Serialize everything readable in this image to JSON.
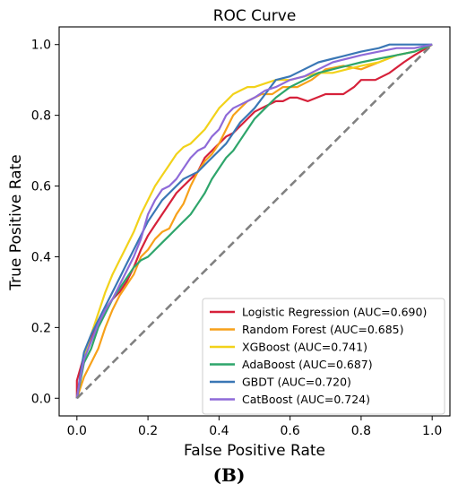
{
  "panel_label": "(B)",
  "chart_data": {
    "type": "line",
    "title": "ROC Curve",
    "xlabel": "False Positive Rate",
    "ylabel": "True Positive Rate",
    "xlim": [
      -0.05,
      1.05
    ],
    "ylim": [
      -0.05,
      1.05
    ],
    "xticks": [
      0.0,
      0.2,
      0.4,
      0.6,
      0.8,
      1.0
    ],
    "yticks": [
      0.0,
      0.2,
      0.4,
      0.6,
      0.8,
      1.0
    ],
    "xtick_labels": [
      "0.0",
      "0.2",
      "0.4",
      "0.6",
      "0.8",
      "1.0"
    ],
    "ytick_labels": [
      "0.0",
      "0.2",
      "0.4",
      "0.6",
      "0.8",
      "1.0"
    ],
    "grid": false,
    "legend_position": "lower-right",
    "diagonal": {
      "x": [
        0,
        1
      ],
      "y": [
        0,
        1
      ],
      "color": "#808080",
      "style": "dashed"
    },
    "series": [
      {
        "name": "Logistic Regression (AUC=0.690)",
        "color": "#d6213a",
        "x": [
          0,
          0,
          0.02,
          0.04,
          0.06,
          0.08,
          0.1,
          0.12,
          0.14,
          0.16,
          0.18,
          0.2,
          0.22,
          0.24,
          0.26,
          0.28,
          0.3,
          0.32,
          0.34,
          0.36,
          0.38,
          0.4,
          0.42,
          0.44,
          0.46,
          0.48,
          0.5,
          0.52,
          0.54,
          0.56,
          0.58,
          0.6,
          0.62,
          0.65,
          0.7,
          0.75,
          0.78,
          0.8,
          0.84,
          0.88,
          0.92,
          0.95,
          1.0
        ],
        "y": [
          0,
          0.05,
          0.12,
          0.17,
          0.22,
          0.25,
          0.28,
          0.3,
          0.33,
          0.37,
          0.42,
          0.46,
          0.49,
          0.52,
          0.55,
          0.58,
          0.6,
          0.62,
          0.64,
          0.68,
          0.7,
          0.72,
          0.74,
          0.75,
          0.77,
          0.79,
          0.81,
          0.82,
          0.83,
          0.84,
          0.84,
          0.85,
          0.85,
          0.84,
          0.86,
          0.86,
          0.88,
          0.9,
          0.9,
          0.92,
          0.95,
          0.97,
          1.0
        ]
      },
      {
        "name": "Random Forest (AUC=0.685)",
        "color": "#f7a11a",
        "x": [
          0,
          0.01,
          0.02,
          0.04,
          0.06,
          0.08,
          0.1,
          0.12,
          0.14,
          0.16,
          0.18,
          0.2,
          0.22,
          0.24,
          0.26,
          0.28,
          0.3,
          0.32,
          0.34,
          0.36,
          0.38,
          0.4,
          0.42,
          0.44,
          0.46,
          0.48,
          0.5,
          0.52,
          0.55,
          0.58,
          0.62,
          0.66,
          0.7,
          0.75,
          0.8,
          0.85,
          0.9,
          0.95,
          1.0
        ],
        "y": [
          0,
          0.03,
          0.06,
          0.1,
          0.14,
          0.2,
          0.25,
          0.29,
          0.32,
          0.35,
          0.4,
          0.42,
          0.45,
          0.47,
          0.48,
          0.52,
          0.55,
          0.6,
          0.64,
          0.67,
          0.69,
          0.72,
          0.76,
          0.8,
          0.82,
          0.84,
          0.85,
          0.86,
          0.86,
          0.88,
          0.88,
          0.9,
          0.93,
          0.94,
          0.93,
          0.95,
          0.97,
          0.98,
          1.0
        ]
      },
      {
        "name": "XGBoost (AUC=0.741)",
        "color": "#f2d21a",
        "x": [
          0,
          0.01,
          0.02,
          0.04,
          0.06,
          0.08,
          0.1,
          0.12,
          0.14,
          0.16,
          0.18,
          0.2,
          0.22,
          0.24,
          0.26,
          0.28,
          0.3,
          0.32,
          0.34,
          0.36,
          0.38,
          0.4,
          0.42,
          0.44,
          0.46,
          0.48,
          0.5,
          0.53,
          0.56,
          0.6,
          0.64,
          0.68,
          0.72,
          0.76,
          0.8,
          0.85,
          0.9,
          0.95,
          1.0
        ],
        "y": [
          0,
          0.06,
          0.12,
          0.18,
          0.24,
          0.3,
          0.35,
          0.39,
          0.43,
          0.47,
          0.52,
          0.56,
          0.6,
          0.63,
          0.66,
          0.69,
          0.71,
          0.72,
          0.74,
          0.76,
          0.79,
          0.82,
          0.84,
          0.86,
          0.87,
          0.88,
          0.88,
          0.89,
          0.9,
          0.9,
          0.91,
          0.92,
          0.92,
          0.93,
          0.94,
          0.95,
          0.97,
          0.98,
          1.0
        ]
      },
      {
        "name": "AdaBoost (AUC=0.687)",
        "color": "#2ea56b",
        "x": [
          0,
          0.01,
          0.02,
          0.04,
          0.06,
          0.08,
          0.1,
          0.12,
          0.14,
          0.16,
          0.18,
          0.2,
          0.22,
          0.24,
          0.26,
          0.28,
          0.3,
          0.32,
          0.34,
          0.36,
          0.38,
          0.4,
          0.42,
          0.44,
          0.46,
          0.48,
          0.5,
          0.53,
          0.56,
          0.6,
          0.64,
          0.68,
          0.72,
          0.76,
          0.8,
          0.85,
          0.9,
          0.95,
          1.0
        ],
        "y": [
          0,
          0.05,
          0.1,
          0.14,
          0.2,
          0.24,
          0.28,
          0.31,
          0.34,
          0.37,
          0.39,
          0.4,
          0.42,
          0.44,
          0.46,
          0.48,
          0.5,
          0.52,
          0.55,
          0.58,
          0.62,
          0.65,
          0.68,
          0.7,
          0.73,
          0.76,
          0.79,
          0.82,
          0.85,
          0.88,
          0.9,
          0.92,
          0.93,
          0.94,
          0.95,
          0.96,
          0.97,
          0.98,
          1.0
        ]
      },
      {
        "name": "GBDT (AUC=0.720)",
        "color": "#3a77b5",
        "x": [
          0,
          0.01,
          0.02,
          0.04,
          0.06,
          0.08,
          0.1,
          0.12,
          0.14,
          0.16,
          0.18,
          0.2,
          0.22,
          0.24,
          0.26,
          0.28,
          0.3,
          0.32,
          0.34,
          0.36,
          0.38,
          0.4,
          0.42,
          0.44,
          0.46,
          0.48,
          0.5,
          0.53,
          0.56,
          0.6,
          0.64,
          0.68,
          0.72,
          0.76,
          0.8,
          0.85,
          0.88,
          0.95,
          1.0
        ],
        "y": [
          0,
          0.07,
          0.13,
          0.18,
          0.22,
          0.26,
          0.3,
          0.34,
          0.38,
          0.42,
          0.46,
          0.5,
          0.53,
          0.56,
          0.58,
          0.6,
          0.62,
          0.63,
          0.64,
          0.66,
          0.68,
          0.7,
          0.72,
          0.75,
          0.78,
          0.8,
          0.82,
          0.86,
          0.9,
          0.91,
          0.93,
          0.95,
          0.96,
          0.97,
          0.98,
          0.99,
          1.0,
          1.0,
          1.0
        ]
      },
      {
        "name": "CatBoost (AUC=0.724)",
        "color": "#8e6ad8",
        "x": [
          0,
          0.01,
          0.02,
          0.04,
          0.06,
          0.08,
          0.1,
          0.12,
          0.14,
          0.16,
          0.18,
          0.2,
          0.22,
          0.24,
          0.26,
          0.28,
          0.3,
          0.32,
          0.34,
          0.36,
          0.38,
          0.4,
          0.42,
          0.44,
          0.46,
          0.48,
          0.5,
          0.53,
          0.56,
          0.6,
          0.64,
          0.68,
          0.72,
          0.76,
          0.8,
          0.85,
          0.9,
          0.95,
          1.0
        ],
        "y": [
          0,
          0.06,
          0.11,
          0.16,
          0.21,
          0.25,
          0.28,
          0.32,
          0.36,
          0.4,
          0.45,
          0.52,
          0.56,
          0.59,
          0.6,
          0.62,
          0.65,
          0.68,
          0.7,
          0.71,
          0.74,
          0.76,
          0.8,
          0.82,
          0.83,
          0.84,
          0.85,
          0.87,
          0.88,
          0.9,
          0.91,
          0.93,
          0.95,
          0.96,
          0.97,
          0.98,
          0.99,
          0.99,
          1.0
        ]
      }
    ]
  }
}
